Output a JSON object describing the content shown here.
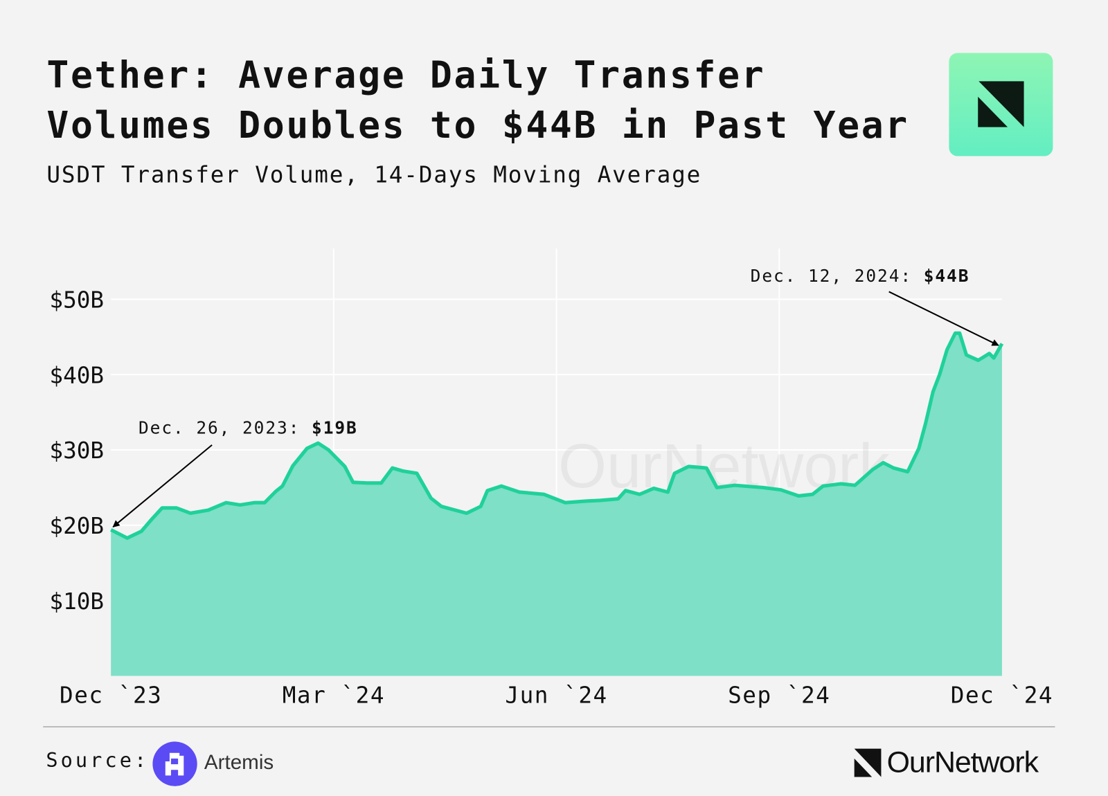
{
  "header": {
    "title_line1": "Tether: Average Daily Transfer",
    "title_line2": "Volumes Doubles to $44B in Past Year",
    "subtitle": "USDT Transfer Volume, 14-Days Moving Average"
  },
  "footer": {
    "source_label": "Source:",
    "source_name": "Artemis",
    "brand": "OurNetwork"
  },
  "watermark": "OurNetwork",
  "colors": {
    "line": "#1fd19a",
    "area": "#7ee0c6",
    "background": "#f3f3f3",
    "grid": "#ffffff"
  },
  "chart_data": {
    "type": "area",
    "title": "Tether: Average Daily Transfer Volumes Doubles to $44B in Past Year",
    "subtitle": "USDT Transfer Volume, 14-Days Moving Average",
    "x_unit": "months since Dec 2023",
    "y_unit": "billion USD",
    "xlim": [
      0,
      12
    ],
    "ylim": [
      0,
      57
    ],
    "x_ticks": [
      {
        "value": 0,
        "label": "Dec `23"
      },
      {
        "value": 3,
        "label": "Mar `24"
      },
      {
        "value": 6,
        "label": "Jun `24"
      },
      {
        "value": 9,
        "label": "Sep `24"
      },
      {
        "value": 12,
        "label": "Dec `24"
      }
    ],
    "y_ticks": [
      {
        "value": 10,
        "label": "$10B"
      },
      {
        "value": 20,
        "label": "$20B"
      },
      {
        "value": 30,
        "label": "$30B"
      },
      {
        "value": 40,
        "label": "$40B"
      },
      {
        "value": 50,
        "label": "$50B"
      }
    ],
    "grid": true,
    "series": [
      {
        "name": "USDT Transfer Volume (14D MA)",
        "points": [
          [
            0.0,
            19.4
          ],
          [
            0.22,
            18.3
          ],
          [
            0.41,
            19.2
          ],
          [
            0.55,
            20.8
          ],
          [
            0.69,
            22.3
          ],
          [
            0.88,
            22.3
          ],
          [
            1.07,
            21.6
          ],
          [
            1.31,
            22.0
          ],
          [
            1.55,
            23.0
          ],
          [
            1.74,
            22.7
          ],
          [
            1.93,
            23.0
          ],
          [
            2.07,
            23.0
          ],
          [
            2.22,
            24.5
          ],
          [
            2.31,
            25.2
          ],
          [
            2.45,
            27.9
          ],
          [
            2.64,
            30.2
          ],
          [
            2.79,
            30.9
          ],
          [
            2.93,
            30.0
          ],
          [
            3.15,
            27.8
          ],
          [
            3.26,
            25.7
          ],
          [
            3.45,
            25.6
          ],
          [
            3.64,
            25.6
          ],
          [
            3.79,
            27.6
          ],
          [
            3.93,
            27.2
          ],
          [
            4.12,
            26.9
          ],
          [
            4.31,
            23.6
          ],
          [
            4.45,
            22.5
          ],
          [
            4.79,
            21.6
          ],
          [
            4.98,
            22.5
          ],
          [
            5.07,
            24.6
          ],
          [
            5.26,
            25.2
          ],
          [
            5.5,
            24.4
          ],
          [
            5.83,
            24.1
          ],
          [
            6.12,
            23.0
          ],
          [
            6.4,
            23.2
          ],
          [
            6.59,
            23.3
          ],
          [
            6.83,
            23.5
          ],
          [
            6.93,
            24.6
          ],
          [
            7.12,
            24.1
          ],
          [
            7.31,
            24.9
          ],
          [
            7.5,
            24.4
          ],
          [
            7.59,
            26.9
          ],
          [
            7.78,
            27.8
          ],
          [
            8.02,
            27.6
          ],
          [
            8.16,
            25.0
          ],
          [
            8.4,
            25.3
          ],
          [
            8.78,
            25.0
          ],
          [
            9.02,
            24.7
          ],
          [
            9.26,
            23.9
          ],
          [
            9.45,
            24.1
          ],
          [
            9.59,
            25.2
          ],
          [
            9.83,
            25.5
          ],
          [
            10.02,
            25.3
          ],
          [
            10.26,
            27.4
          ],
          [
            10.4,
            28.3
          ],
          [
            10.54,
            27.6
          ],
          [
            10.73,
            27.1
          ],
          [
            10.88,
            30.2
          ],
          [
            10.97,
            33.5
          ],
          [
            11.07,
            37.7
          ],
          [
            11.16,
            40.0
          ],
          [
            11.26,
            43.3
          ],
          [
            11.37,
            45.5
          ],
          [
            11.43,
            45.5
          ],
          [
            11.52,
            42.6
          ],
          [
            11.68,
            41.9
          ],
          [
            11.83,
            42.8
          ],
          [
            11.89,
            42.2
          ],
          [
            12.0,
            44.1
          ]
        ]
      }
    ],
    "annotations": [
      {
        "text": "Dec. 26, 2023: ",
        "value_text": "$19B",
        "x": 0.0,
        "y": 19
      },
      {
        "text": "Dec. 12, 2024: ",
        "value_text": "$44B",
        "x": 12.0,
        "y": 44
      }
    ]
  }
}
